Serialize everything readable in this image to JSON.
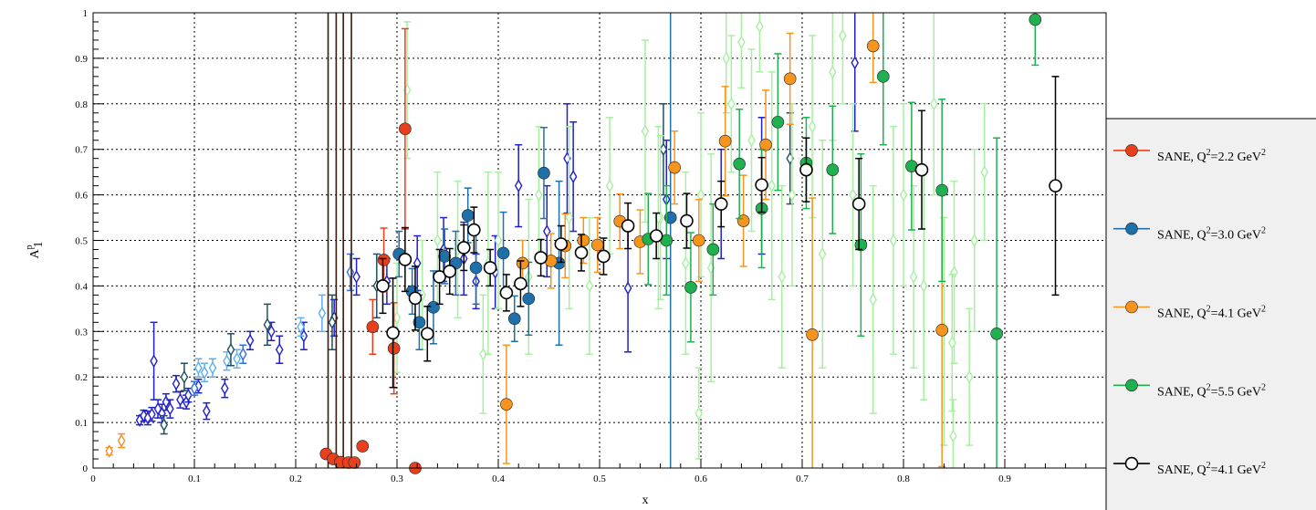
{
  "chart_data": {
    "type": "scatter",
    "title": "",
    "xlabel": "x",
    "ylabel": "A",
    "ylabel_sub": "1",
    "ylabel_sup": "p",
    "xlim": [
      0,
      1
    ],
    "ylim": [
      0,
      1
    ],
    "grid": true,
    "legend_position": "right",
    "x_ticks": [
      "0",
      "0.1",
      "0.2",
      "0.3",
      "0.4",
      "0.5",
      "0.6",
      "0.7",
      "0.8",
      "0.9"
    ],
    "y_ticks": [
      "0",
      "0.1",
      "0.2",
      "0.3",
      "0.4",
      "0.5",
      "0.6",
      "0.7",
      "0.8",
      "0.9",
      "1"
    ],
    "background_series": [
      {
        "color": "#f28e2b",
        "marker": "open-diamond",
        "points": [
          [
            0.016,
            0.037,
            0.008
          ],
          [
            0.028,
            0.06,
            0.015
          ]
        ]
      },
      {
        "color": "#1f1fd0",
        "marker": "open-diamond",
        "points": [
          [
            0.046,
            0.105,
            0.01
          ],
          [
            0.05,
            0.115,
            0.012
          ],
          [
            0.054,
            0.11,
            0.015
          ],
          [
            0.058,
            0.118,
            0.015
          ],
          [
            0.06,
            0.235,
            0.085
          ],
          [
            0.064,
            0.13,
            0.02
          ],
          [
            0.068,
            0.12,
            0.02
          ],
          [
            0.072,
            0.145,
            0.018
          ],
          [
            0.076,
            0.13,
            0.02
          ],
          [
            0.082,
            0.185,
            0.018
          ],
          [
            0.086,
            0.15,
            0.018
          ],
          [
            0.092,
            0.145,
            0.015
          ],
          [
            0.094,
            0.16,
            0.015
          ],
          [
            0.104,
            0.18,
            0.015
          ],
          [
            0.112,
            0.125,
            0.018
          ],
          [
            0.13,
            0.175,
            0.02
          ],
          [
            0.155,
            0.28,
            0.02
          ],
          [
            0.176,
            0.3,
            0.02
          ],
          [
            0.184,
            0.26,
            0.03
          ],
          [
            0.208,
            0.29,
            0.03
          ],
          [
            0.238,
            0.33,
            0.04
          ],
          [
            0.26,
            0.42,
            0.04
          ],
          [
            0.29,
            0.41,
            0.05
          ],
          [
            0.32,
            0.45,
            0.06
          ],
          [
            0.346,
            0.48,
            0.07
          ],
          [
            0.366,
            0.46,
            0.08
          ],
          [
            0.378,
            0.41,
            0.06
          ],
          [
            0.397,
            0.43,
            0.08
          ],
          [
            0.42,
            0.62,
            0.09
          ],
          [
            0.448,
            0.52,
            0.1
          ],
          [
            0.468,
            0.68,
            0.12
          ],
          [
            0.474,
            0.64,
            0.12
          ],
          [
            0.528,
            0.395,
            0.14
          ],
          [
            0.566,
            0.59,
            0.13
          ],
          [
            0.62,
            0.58,
            0.12
          ],
          [
            0.66,
            0.62,
            0.15
          ],
          [
            0.752,
            0.89,
            0.15
          ]
        ]
      },
      {
        "color": "#2f6fe0",
        "marker": "open-diamond",
        "points": [
          [
            0.1,
            0.175,
            0.015
          ],
          [
            0.148,
            0.25,
            0.02
          ],
          [
            0.254,
            0.43,
            0.04
          ]
        ]
      },
      {
        "color": "#5fb0f0",
        "marker": "open-diamond",
        "points": [
          [
            0.104,
            0.22,
            0.02
          ],
          [
            0.11,
            0.21,
            0.02
          ],
          [
            0.118,
            0.22,
            0.02
          ],
          [
            0.132,
            0.235,
            0.02
          ],
          [
            0.142,
            0.24,
            0.02
          ],
          [
            0.205,
            0.31,
            0.02
          ],
          [
            0.226,
            0.34,
            0.04
          ]
        ]
      },
      {
        "color": "#1f4f60",
        "marker": "open-diamond",
        "points": [
          [
            0.07,
            0.095,
            0.02
          ],
          [
            0.09,
            0.2,
            0.03
          ],
          [
            0.136,
            0.26,
            0.035
          ],
          [
            0.172,
            0.315,
            0.045
          ],
          [
            0.236,
            0.32,
            0.06
          ],
          [
            0.28,
            0.4,
            0.07
          ],
          [
            0.563,
            0.7,
            0.1
          ],
          [
            0.688,
            0.68,
            0.1
          ]
        ]
      },
      {
        "color": "#a6f0a0",
        "marker": "open-diamond",
        "points": [
          [
            0.3,
            0.33,
            0.12
          ],
          [
            0.31,
            0.83,
            0.15
          ],
          [
            0.325,
            0.38,
            0.12
          ],
          [
            0.34,
            0.5,
            0.15
          ],
          [
            0.36,
            0.48,
            0.15
          ],
          [
            0.385,
            0.25,
            0.13
          ],
          [
            0.39,
            0.45,
            0.2
          ],
          [
            0.4,
            0.5,
            0.15
          ],
          [
            0.43,
            0.42,
            0.17
          ],
          [
            0.44,
            0.6,
            0.15
          ],
          [
            0.47,
            0.55,
            0.2
          ],
          [
            0.49,
            0.4,
            0.15
          ],
          [
            0.51,
            0.62,
            0.15
          ],
          [
            0.545,
            0.74,
            0.2
          ],
          [
            0.56,
            0.55,
            0.18
          ],
          [
            0.585,
            0.45,
            0.2
          ],
          [
            0.6,
            0.6,
            0.18
          ],
          [
            0.61,
            0.44,
            0.25
          ],
          [
            0.63,
            0.8,
            0.15
          ],
          [
            0.65,
            0.72,
            0.2
          ],
          [
            0.67,
            0.62,
            0.25
          ],
          [
            0.68,
            0.42,
            0.2
          ],
          [
            0.69,
            0.6,
            0.2
          ],
          [
            0.71,
            0.75,
            0.2
          ],
          [
            0.72,
            0.47,
            0.25
          ],
          [
            0.73,
            0.87,
            0.15
          ],
          [
            0.74,
            0.95,
            0.15
          ],
          [
            0.75,
            0.6,
            0.2
          ],
          [
            0.77,
            0.37,
            0.25
          ],
          [
            0.79,
            0.5,
            0.25
          ],
          [
            0.8,
            0.6,
            0.2
          ],
          [
            0.81,
            0.42,
            0.2
          ],
          [
            0.82,
            0.4,
            0.25
          ],
          [
            0.83,
            0.8,
            0.2
          ],
          [
            0.84,
            0.3,
            0.25
          ],
          [
            0.85,
            0.43,
            0.2
          ],
          [
            0.865,
            0.2,
            0.15
          ],
          [
            0.87,
            0.5,
            0.2
          ],
          [
            0.598,
            0.12,
            0.1
          ],
          [
            0.849,
            0.07,
            0.08
          ],
          [
            0.848,
            0.275,
            0.15
          ],
          [
            0.88,
            0.65,
            0.15
          ],
          [
            0.64,
            0.935,
            0.1
          ],
          [
            0.658,
            0.97,
            0.1
          ],
          [
            0.558,
            0.55,
            0.2
          ],
          [
            0.625,
            0.9,
            0.12
          ]
        ]
      },
      {
        "color": "#3a1a0a",
        "marker": "none",
        "points": [
          [
            0.232,
            0.5,
            0.5
          ],
          [
            0.24,
            0.5,
            0.5
          ],
          [
            0.247,
            0.5,
            0.5
          ],
          [
            0.255,
            0.5,
            0.5
          ]
        ]
      }
    ],
    "series": [
      {
        "name": "SANE, Q²=2.2 GeV²",
        "legend_label": {
          "prefix": "SANE, Q",
          "sup1": "2",
          "middle": "=2.2 GeV",
          "sup2": "2"
        },
        "color": "#e8401c",
        "marker": "filled-circle",
        "points": [
          [
            0.23,
            0.031,
            0.005
          ],
          [
            0.237,
            0.02,
            0.005
          ],
          [
            0.244,
            0.013,
            0.005
          ],
          [
            0.252,
            0.012,
            0.005
          ],
          [
            0.258,
            0.012,
            0.005
          ],
          [
            0.266,
            0.048,
            0.008
          ],
          [
            0.276,
            0.31,
            0.06
          ],
          [
            0.287,
            0.457,
            0.07
          ],
          [
            0.297,
            0.263,
            0.1
          ],
          [
            0.308,
            0.745,
            0.22
          ],
          [
            0.318,
            0.0,
            0.0
          ]
        ]
      },
      {
        "name": "SANE, Q²=3.0 GeV²",
        "legend_label": {
          "prefix": "SANE, Q",
          "sup1": "2",
          "middle": "=3.0 GeV",
          "sup2": "2"
        },
        "color": "#1f6fa8",
        "marker": "filled-circle",
        "points": [
          [
            0.302,
            0.47,
            0.05
          ],
          [
            0.315,
            0.388,
            0.05
          ],
          [
            0.322,
            0.32,
            0.06
          ],
          [
            0.336,
            0.353,
            0.08
          ],
          [
            0.347,
            0.465,
            0.06
          ],
          [
            0.358,
            0.45,
            0.07
          ],
          [
            0.37,
            0.555,
            0.06
          ],
          [
            0.378,
            0.44,
            0.08
          ],
          [
            0.405,
            0.472,
            0.09
          ],
          [
            0.416,
            0.328,
            0.05
          ],
          [
            0.43,
            0.372,
            0.08
          ],
          [
            0.445,
            0.648,
            0.1
          ],
          [
            0.46,
            0.45,
            0.18
          ],
          [
            0.57,
            0.55,
            0.7
          ]
        ]
      },
      {
        "name": "SANE, Q²=4.1 GeV²",
        "legend_label": {
          "prefix": "SANE, Q",
          "sup1": "2",
          "middle": "=4.1 GeV",
          "sup2": "2"
        },
        "color": "#f7941d",
        "marker": "filled-circle",
        "points": [
          [
            0.408,
            0.14,
            0.13
          ],
          [
            0.424,
            0.45,
            0.05
          ],
          [
            0.452,
            0.455,
            0.06
          ],
          [
            0.466,
            0.488,
            0.07
          ],
          [
            0.484,
            0.5,
            0.05
          ],
          [
            0.498,
            0.49,
            0.06
          ],
          [
            0.52,
            0.542,
            0.06
          ],
          [
            0.54,
            0.497,
            0.07
          ],
          [
            0.574,
            0.66,
            0.08
          ],
          [
            0.598,
            0.5,
            0.09
          ],
          [
            0.624,
            0.718,
            0.12
          ],
          [
            0.642,
            0.543,
            0.1
          ],
          [
            0.664,
            0.71,
            0.12
          ],
          [
            0.688,
            0.855,
            0.1
          ],
          [
            0.71,
            0.293,
            0.3
          ],
          [
            0.77,
            0.927,
            0.08
          ],
          [
            0.838,
            0.303,
            0.3
          ]
        ]
      },
      {
        "name": "SANE, Q²=5.5 GeV²",
        "legend_label": {
          "prefix": "SANE, Q",
          "sup1": "2",
          "middle": "=5.5 GeV",
          "sup2": "2"
        },
        "color": "#1fb050",
        "marker": "filled-circle",
        "points": [
          [
            0.548,
            0.503,
            0.1
          ],
          [
            0.566,
            0.5,
            0.12
          ],
          [
            0.59,
            0.397,
            0.12
          ],
          [
            0.612,
            0.48,
            0.1
          ],
          [
            0.638,
            0.668,
            0.12
          ],
          [
            0.66,
            0.57,
            0.13
          ],
          [
            0.676,
            0.76,
            0.15
          ],
          [
            0.704,
            0.67,
            0.1
          ],
          [
            0.73,
            0.655,
            0.14
          ],
          [
            0.758,
            0.49,
            0.2
          ],
          [
            0.78,
            0.86,
            0.15
          ],
          [
            0.808,
            0.663,
            0.14
          ],
          [
            0.838,
            0.61,
            0.2
          ],
          [
            0.892,
            0.295,
            0.43
          ],
          [
            0.93,
            0.985,
            0.1
          ]
        ]
      },
      {
        "name": "SANE, Q²=4.1 GeV²",
        "legend_label": {
          "prefix": "SANE, Q",
          "sup1": "2",
          "middle": "=4.1 GeV",
          "sup2": "2"
        },
        "color": "#000000",
        "marker": "open-circle",
        "points": [
          [
            0.286,
            0.4,
            0.06
          ],
          [
            0.296,
            0.297,
            0.12
          ],
          [
            0.308,
            0.458,
            0.07
          ],
          [
            0.318,
            0.373,
            0.07
          ],
          [
            0.33,
            0.295,
            0.06
          ],
          [
            0.342,
            0.42,
            0.06
          ],
          [
            0.352,
            0.432,
            0.05
          ],
          [
            0.366,
            0.484,
            0.05
          ],
          [
            0.376,
            0.523,
            0.05
          ],
          [
            0.392,
            0.44,
            0.04
          ],
          [
            0.408,
            0.385,
            0.04
          ],
          [
            0.422,
            0.405,
            0.05
          ],
          [
            0.442,
            0.462,
            0.04
          ],
          [
            0.462,
            0.492,
            0.04
          ],
          [
            0.482,
            0.473,
            0.04
          ],
          [
            0.504,
            0.465,
            0.04
          ],
          [
            0.528,
            0.532,
            0.05
          ],
          [
            0.556,
            0.51,
            0.05
          ],
          [
            0.586,
            0.543,
            0.06
          ],
          [
            0.62,
            0.58,
            0.05
          ],
          [
            0.66,
            0.622,
            0.06
          ],
          [
            0.704,
            0.655,
            0.07
          ],
          [
            0.756,
            0.58,
            0.1
          ],
          [
            0.818,
            0.655,
            0.13
          ],
          [
            0.95,
            0.62,
            0.24
          ]
        ]
      }
    ]
  }
}
